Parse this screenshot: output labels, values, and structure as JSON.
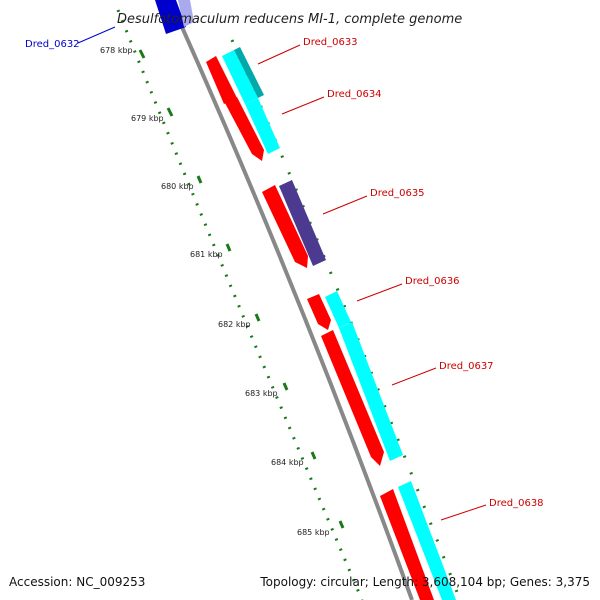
{
  "title": "Desulfotomaculum reducens MI-1, complete genome",
  "tick_labels": [
    "678 kbp",
    "679 kbp",
    "680 kbp",
    "681 kbp",
    "682 kbp",
    "683 kbp",
    "684 kbp",
    "685 kbp"
  ],
  "genes": [
    {
      "name": "Dred_0632",
      "color": "#0000cc"
    },
    {
      "name": "Dred_0633",
      "color": "#cc0000"
    },
    {
      "name": "Dred_0634",
      "color": "#cc0000"
    },
    {
      "name": "Dred_0635",
      "color": "#cc0000"
    },
    {
      "name": "Dred_0636",
      "color": "#cc0000"
    },
    {
      "name": "Dred_0637",
      "color": "#cc0000"
    },
    {
      "name": "Dred_0638",
      "color": "#cc0000"
    }
  ],
  "colors": {
    "cds_red": "#ff0000",
    "hit_cyan": "#00ffff",
    "hit_purple": "#4b3a8f",
    "backbone": "#888888",
    "tick_green": "#1a7a1a",
    "gene_blue": "#0000cc"
  },
  "footer": {
    "accession": "Accession: NC_009253",
    "summary": "Topology: circular; Length: 3,608,104 bp; Genes: 3,375"
  }
}
